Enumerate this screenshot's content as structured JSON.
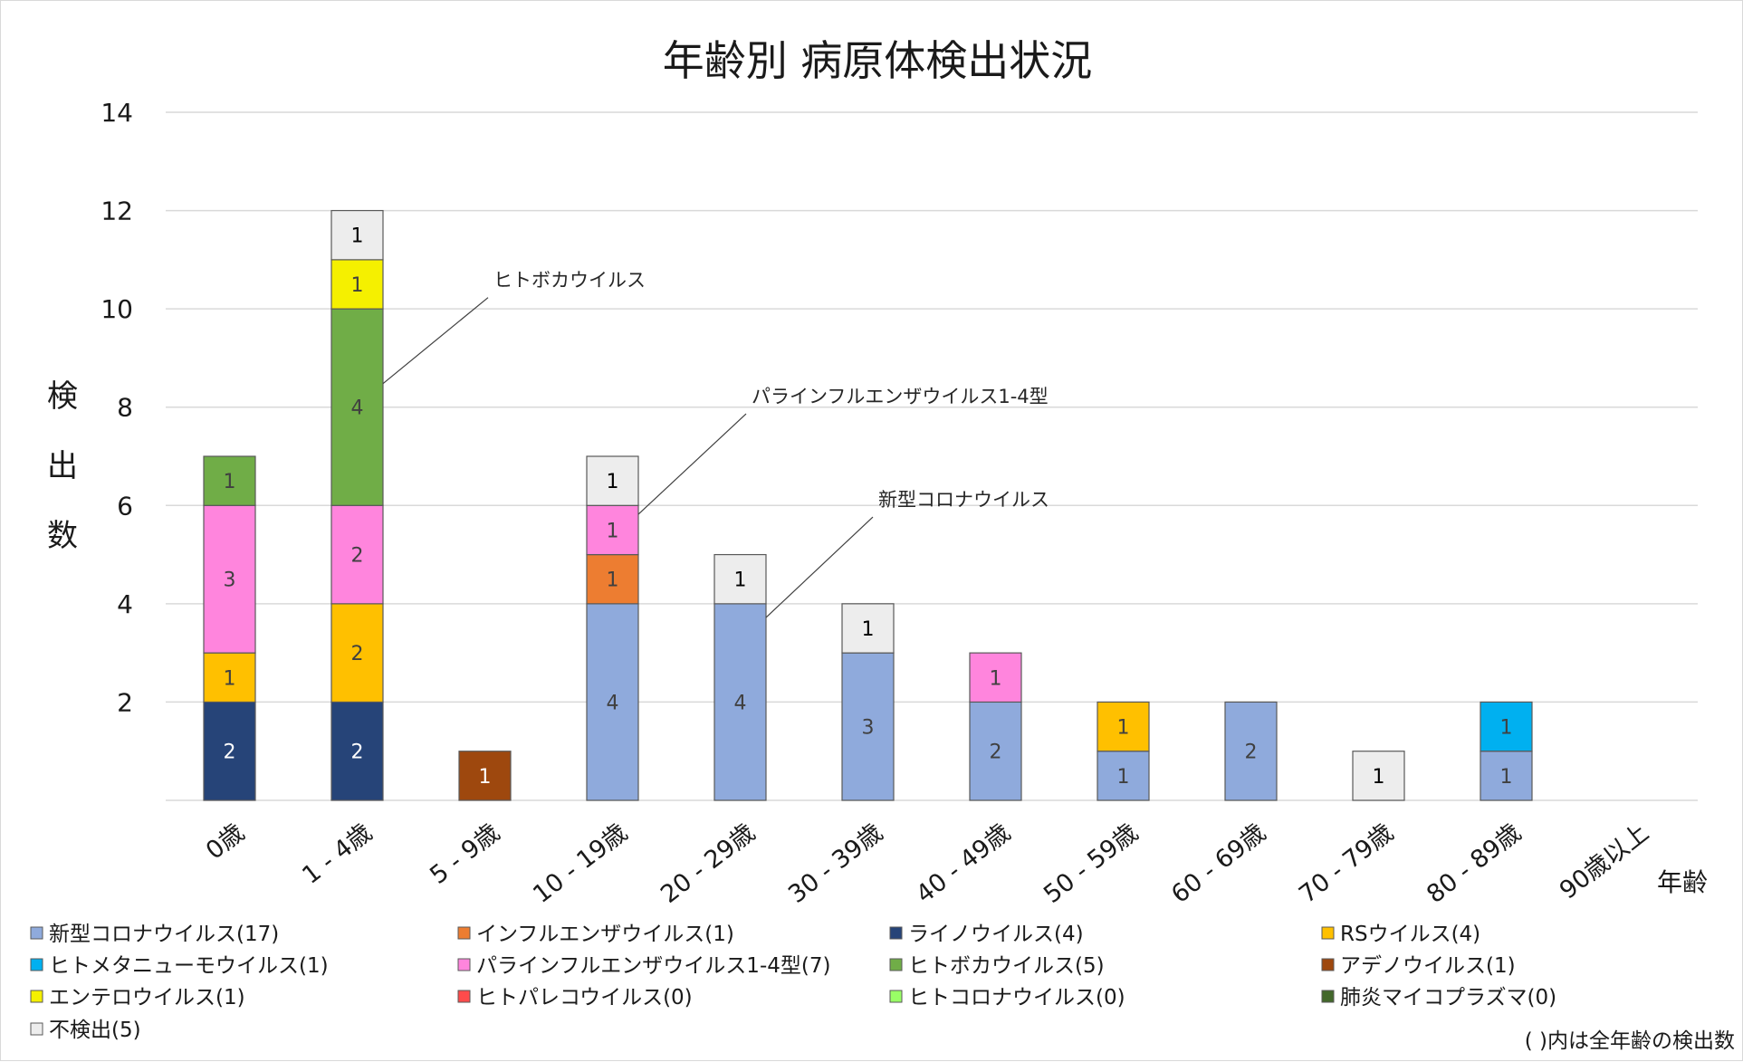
{
  "chart_data": {
    "type": "bar",
    "stacked": true,
    "title": "年齢別 病原体検出状況",
    "xlabel": "年齢",
    "ylabel": "検出数",
    "ylim": [
      0,
      14
    ],
    "yticks": [
      2,
      4,
      6,
      8,
      10,
      12,
      14
    ],
    "grid": true,
    "legend_position": "bottom",
    "categories": [
      "0歳",
      "1 - 4歳",
      "5 - 9歳",
      "10 - 19歳",
      "20 - 29歳",
      "30 - 39歳",
      "40 - 49歳",
      "50 - 59歳",
      "60 - 69歳",
      "70 - 79歳",
      "80 - 89歳",
      "90歳以上"
    ],
    "series": [
      {
        "name": "新型コロナウイルス",
        "legend": "新型コロナウイルス(17)",
        "color": "#8faadc",
        "label_color": "#404040",
        "values": [
          0,
          0,
          0,
          4,
          4,
          3,
          2,
          1,
          2,
          0,
          1,
          0
        ]
      },
      {
        "name": "インフルエンザウイルス",
        "legend": "インフルエンザウイルス(1)",
        "color": "#ed7d31",
        "label_color": "#404040",
        "values": [
          0,
          0,
          0,
          1,
          0,
          0,
          0,
          0,
          0,
          0,
          0,
          0
        ]
      },
      {
        "name": "ライノウイルス",
        "legend": "ライノウイルス(4)",
        "color": "#264478",
        "label_color": "#ffffff",
        "values": [
          2,
          2,
          0,
          0,
          0,
          0,
          0,
          0,
          0,
          0,
          0,
          0
        ]
      },
      {
        "name": "RSウイルス",
        "legend": "RSウイルス(4)",
        "color": "#ffc000",
        "label_color": "#404040",
        "values": [
          1,
          2,
          0,
          0,
          0,
          0,
          0,
          1,
          0,
          0,
          0,
          0
        ]
      },
      {
        "name": "ヒトメタニューモウイルス",
        "legend": "ヒトメタニューモウイルス(1)",
        "color": "#00b0f0",
        "label_color": "#404040",
        "values": [
          0,
          0,
          0,
          0,
          0,
          0,
          0,
          0,
          0,
          0,
          1,
          0
        ]
      },
      {
        "name": "パラインフルエンザウイルス1-4型",
        "legend": "パラインフルエンザウイルス1-4型(7)",
        "color": "#ff85dd",
        "label_color": "#404040",
        "values": [
          3,
          2,
          0,
          1,
          0,
          0,
          1,
          0,
          0,
          0,
          0,
          0
        ]
      },
      {
        "name": "ヒトボカウイルス",
        "legend": "ヒトボカウイルス(5)",
        "color": "#70ad47",
        "label_color": "#404040",
        "values": [
          1,
          4,
          0,
          0,
          0,
          0,
          0,
          0,
          0,
          0,
          0,
          0
        ]
      },
      {
        "name": "アデノウイルス",
        "legend": "アデノウイルス(1)",
        "color": "#9e480e",
        "label_color": "#ffffff",
        "values": [
          0,
          0,
          1,
          0,
          0,
          0,
          0,
          0,
          0,
          0,
          0,
          0
        ]
      },
      {
        "name": "エンテロウイルス",
        "legend": "エンテロウイルス(1)",
        "color": "#f5f000",
        "label_color": "#404040",
        "values": [
          0,
          1,
          0,
          0,
          0,
          0,
          0,
          0,
          0,
          0,
          0,
          0
        ]
      },
      {
        "name": "ヒトパレコウイルス",
        "legend": "ヒトパレコウイルス(0)",
        "color": "#ff4b4b",
        "label_color": "#404040",
        "values": [
          0,
          0,
          0,
          0,
          0,
          0,
          0,
          0,
          0,
          0,
          0,
          0
        ]
      },
      {
        "name": "ヒトコロナウイルス",
        "legend": "ヒトコロナウイルス(0)",
        "color": "#99ff66",
        "label_color": "#404040",
        "values": [
          0,
          0,
          0,
          0,
          0,
          0,
          0,
          0,
          0,
          0,
          0,
          0
        ]
      },
      {
        "name": "肺炎マイコプラズマ",
        "legend": "肺炎マイコプラズマ(0)",
        "color": "#43682b",
        "label_color": "#ffffff",
        "values": [
          0,
          0,
          0,
          0,
          0,
          0,
          0,
          0,
          0,
          0,
          0,
          0
        ]
      },
      {
        "name": "不検出",
        "legend": "不検出(5)",
        "color": "#ededed",
        "label_color": "#000000",
        "values": [
          0,
          1,
          0,
          1,
          1,
          1,
          0,
          0,
          0,
          1,
          0,
          0
        ]
      }
    ],
    "stack_order": [
      "新型コロナウイルス",
      "インフルエンザウイルス",
      "ライノウイルス",
      "RSウイルス",
      "ヒトメタニューモウイルス",
      "パラインフルエンザウイルス1-4型",
      "ヒトボカウイルス",
      "アデノウイルス",
      "エンテロウイルス",
      "ヒトパレコウイルス",
      "ヒトコロナウイルス",
      "肺炎マイコプラズマ",
      "不検出"
    ],
    "annotations": [
      {
        "text": "ヒトボカウイルス",
        "category": "1 - 4歳",
        "series": "ヒトボカウイルス"
      },
      {
        "text": "パラインフルエンザウイルス1-4型",
        "category": "10 - 19歳",
        "series": "パラインフルエンザウイルス1-4型"
      },
      {
        "text": "新型コロナウイルス",
        "category": "20 - 29歳",
        "series": "新型コロナウイルス"
      }
    ],
    "note": "( )内は全年齢の検出数"
  }
}
